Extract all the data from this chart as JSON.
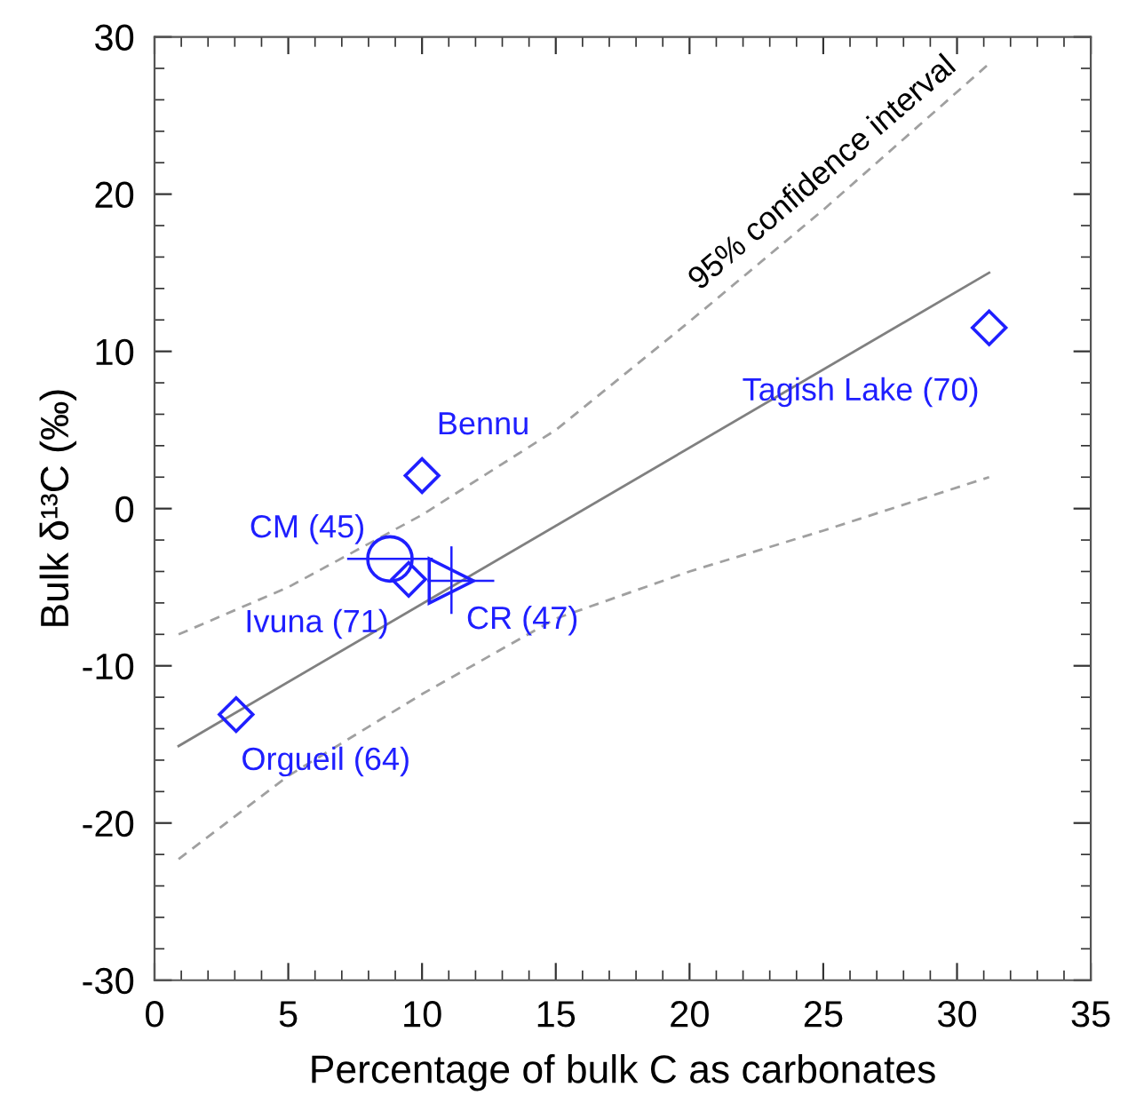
{
  "chart_data": {
    "type": "scatter",
    "xlabel": "Percentage of bulk C as carbonates",
    "ylabel": "Bulk δ¹³C (‰)",
    "xlim": [
      0,
      35
    ],
    "ylim": [
      -30,
      30
    ],
    "xticks": [
      0,
      5,
      10,
      15,
      20,
      25,
      30,
      35
    ],
    "yticks": [
      -30,
      -20,
      -10,
      0,
      10,
      20,
      30
    ],
    "grid": false,
    "legend": false,
    "annotations": [
      "95% confidence interval"
    ],
    "series": [
      {
        "type": "line",
        "color": "#808080",
        "line_style": "solid",
        "marker": "none",
        "x": [
          0.9,
          31.2
        ],
        "values": [
          -15.1,
          15.0
        ]
      },
      {
        "type": "line",
        "color": "#a0a0a0",
        "line_style": "dashed",
        "marker": "none",
        "x": [
          0.9,
          5,
          10,
          15,
          20,
          25,
          31.2
        ],
        "values": [
          -8.0,
          -5.0,
          -0.4,
          5.0,
          11.9,
          19.0,
          28.3
        ]
      },
      {
        "type": "line",
        "color": "#a0a0a0",
        "line_style": "dashed",
        "marker": "none",
        "x": [
          0.9,
          5,
          10,
          15,
          20,
          25,
          31.2
        ],
        "values": [
          -22.3,
          -17.0,
          -11.8,
          -7.0,
          -4.0,
          -1.4,
          2.0
        ]
      },
      {
        "name": "Orgueil (64)",
        "color": "#1f1fff",
        "marker": "diamond",
        "x": [
          3.05
        ],
        "values": [
          -13.1
        ]
      },
      {
        "name": "Bennu",
        "color": "#1f1fff",
        "marker": "diamond",
        "x": [
          10.0
        ],
        "values": [
          2.1
        ]
      },
      {
        "name": "Ivuna (71)",
        "color": "#1f1fff",
        "marker": "diamond",
        "x": [
          9.5
        ],
        "values": [
          -4.5
        ]
      },
      {
        "name": "CM (45)",
        "color": "#1f1fff",
        "marker": "circle",
        "x": [
          8.8
        ],
        "values": [
          -3.2
        ],
        "xerrors": [
          [
            7.2,
            10.4
          ]
        ]
      },
      {
        "name": "CR (47)",
        "color": "#1f1fff",
        "marker": "triangle",
        "x": [
          11.1
        ],
        "values": [
          -4.6
        ],
        "xerrors": [
          [
            10.2,
            12.7
          ]
        ],
        "errors": [
          [
            -6.7,
            -2.4
          ]
        ]
      },
      {
        "name": "Tagish Lake (70)",
        "color": "#1f1fff",
        "marker": "diamond",
        "x": [
          31.2
        ],
        "values": [
          11.5
        ]
      }
    ]
  }
}
